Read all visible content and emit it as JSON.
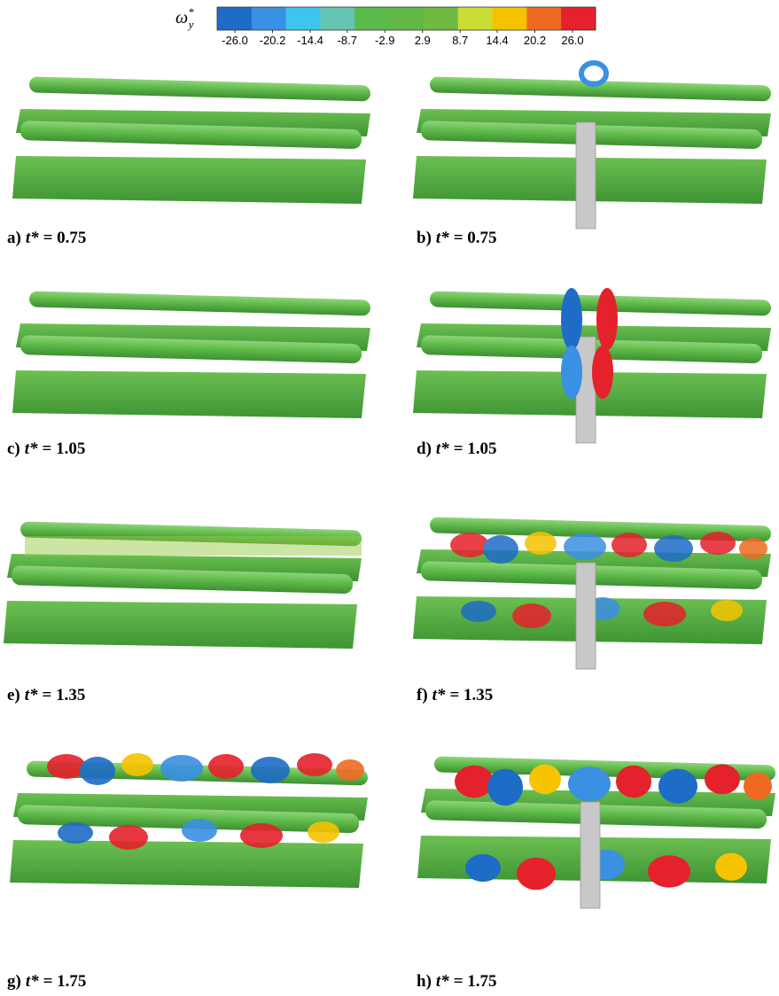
{
  "colorbar": {
    "symbol": "ω",
    "superscript": "*",
    "subscript": "y",
    "ticks": [
      {
        "value": -26,
        "label": "-26.0"
      },
      {
        "value": -20.2,
        "label": "-20.2"
      },
      {
        "value": -14.4,
        "label": "-14.4"
      },
      {
        "value": -8.7,
        "label": "-8.7"
      },
      {
        "value": -2.9,
        "label": "-2.9"
      },
      {
        "value": 2.9,
        "label": "2.9"
      },
      {
        "value": 8.7,
        "label": "8.7"
      },
      {
        "value": 14.4,
        "label": "14.4"
      },
      {
        "value": 20.2,
        "label": "20.2"
      },
      {
        "value": 26,
        "label": "26.0"
      }
    ],
    "colors": [
      "#1d6cc6",
      "#3a90e2",
      "#3ec4ef",
      "#63c5b2",
      "#5bba4c",
      "#62b846",
      "#6fba40",
      "#cadd36",
      "#f6c300",
      "#ee6a22",
      "#e5212b"
    ]
  },
  "panels": [
    {
      "label": "a)",
      "symbol": "t*",
      "value": "= 0.75"
    },
    {
      "label": "b)",
      "symbol": "t*",
      "value": "= 0.75"
    },
    {
      "label": "c)",
      "symbol": "t*",
      "value": "= 1.05"
    },
    {
      "label": "d)",
      "symbol": "t*",
      "value": "= 1.05"
    },
    {
      "label": "e)",
      "symbol": "t*",
      "value": "= 1.35"
    },
    {
      "label": "f)",
      "symbol": "t*",
      "value": "= 1.35"
    },
    {
      "label": "g)",
      "symbol": "t*",
      "value": "= 1.75"
    },
    {
      "label": "h)",
      "symbol": "t*",
      "value": "= 1.75"
    }
  ]
}
